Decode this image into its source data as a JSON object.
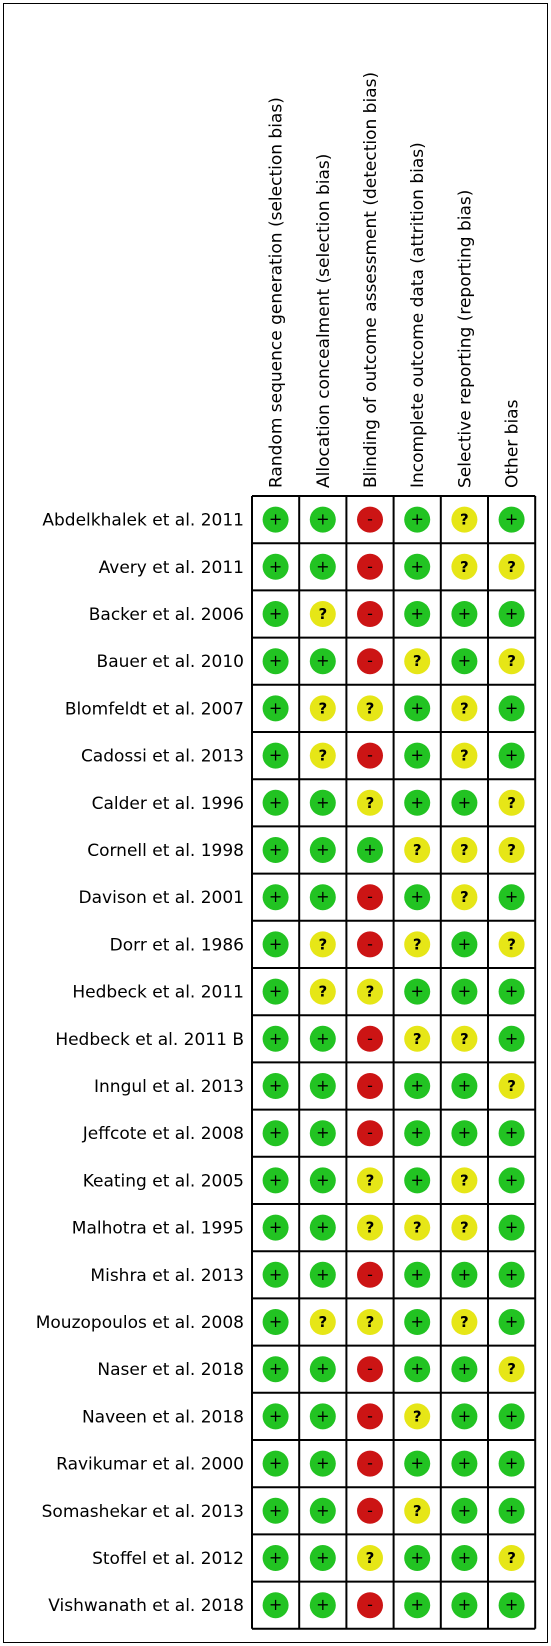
{
  "chart_data": {
    "type": "table",
    "columns": [
      "Random sequence generation (selection bias)",
      "Allocation concealment (selection bias)",
      "Blinding of outcome assessment (detection bias)",
      "Incomplete outcome data (attrition bias)",
      "Selective reporting (reporting bias)",
      "Other bias"
    ],
    "rows": [
      {
        "study": "Abdelkhalek et al. 2011",
        "ratings": [
          "+",
          "+",
          "-",
          "+",
          "?",
          "+"
        ]
      },
      {
        "study": "Avery et al. 2011",
        "ratings": [
          "+",
          "+",
          "-",
          "+",
          "?",
          "?"
        ]
      },
      {
        "study": "Backer et al. 2006",
        "ratings": [
          "+",
          "?",
          "-",
          "+",
          "+",
          "+"
        ]
      },
      {
        "study": "Bauer et al. 2010",
        "ratings": [
          "+",
          "+",
          "-",
          "?",
          "+",
          "?"
        ]
      },
      {
        "study": "Blomfeldt et al. 2007",
        "ratings": [
          "+",
          "?",
          "?",
          "+",
          "?",
          "+"
        ]
      },
      {
        "study": "Cadossi et al. 2013",
        "ratings": [
          "+",
          "?",
          "-",
          "+",
          "?",
          "+"
        ]
      },
      {
        "study": "Calder et al. 1996",
        "ratings": [
          "+",
          "+",
          "?",
          "+",
          "+",
          "?"
        ]
      },
      {
        "study": "Cornell et al. 1998",
        "ratings": [
          "+",
          "+",
          "+",
          "?",
          "?",
          "?"
        ]
      },
      {
        "study": "Davison et al. 2001",
        "ratings": [
          "+",
          "+",
          "-",
          "+",
          "?",
          "+"
        ]
      },
      {
        "study": "Dorr et al. 1986",
        "ratings": [
          "+",
          "?",
          "-",
          "?",
          "+",
          "?"
        ]
      },
      {
        "study": "Hedbeck et al. 2011",
        "ratings": [
          "+",
          "?",
          "?",
          "+",
          "+",
          "+"
        ]
      },
      {
        "study": "Hedbeck et al. 2011 B",
        "ratings": [
          "+",
          "+",
          "-",
          "?",
          "?",
          "+"
        ]
      },
      {
        "study": "Inngul et al. 2013",
        "ratings": [
          "+",
          "+",
          "-",
          "+",
          "+",
          "?"
        ]
      },
      {
        "study": "Jeffcote et al. 2008",
        "ratings": [
          "+",
          "+",
          "-",
          "+",
          "+",
          "+"
        ]
      },
      {
        "study": "Keating et al. 2005",
        "ratings": [
          "+",
          "+",
          "?",
          "+",
          "?",
          "+"
        ]
      },
      {
        "study": "Malhotra et al. 1995",
        "ratings": [
          "+",
          "+",
          "?",
          "?",
          "?",
          "+"
        ]
      },
      {
        "study": "Mishra et al. 2013",
        "ratings": [
          "+",
          "+",
          "-",
          "+",
          "+",
          "+"
        ]
      },
      {
        "study": "Mouzopoulos et al. 2008",
        "ratings": [
          "+",
          "?",
          "?",
          "+",
          "?",
          "+"
        ]
      },
      {
        "study": "Naser et al. 2018",
        "ratings": [
          "+",
          "+",
          "-",
          "+",
          "+",
          "?"
        ]
      },
      {
        "study": "Naveen et al. 2018",
        "ratings": [
          "+",
          "+",
          "-",
          "?",
          "+",
          "+"
        ]
      },
      {
        "study": "Ravikumar et al. 2000",
        "ratings": [
          "+",
          "+",
          "-",
          "+",
          "+",
          "+"
        ]
      },
      {
        "study": "Somashekar et al. 2013",
        "ratings": [
          "+",
          "+",
          "-",
          "?",
          "+",
          "+"
        ]
      },
      {
        "study": "Stoffel et al. 2012",
        "ratings": [
          "+",
          "+",
          "?",
          "+",
          "+",
          "?"
        ]
      },
      {
        "study": "Vishwanath et al. 2018",
        "ratings": [
          "+",
          "+",
          "-",
          "+",
          "+",
          "+"
        ]
      }
    ],
    "colors": {
      "+": "#22c322",
      "?": "#e6e617",
      "-": "#cc1414"
    }
  }
}
